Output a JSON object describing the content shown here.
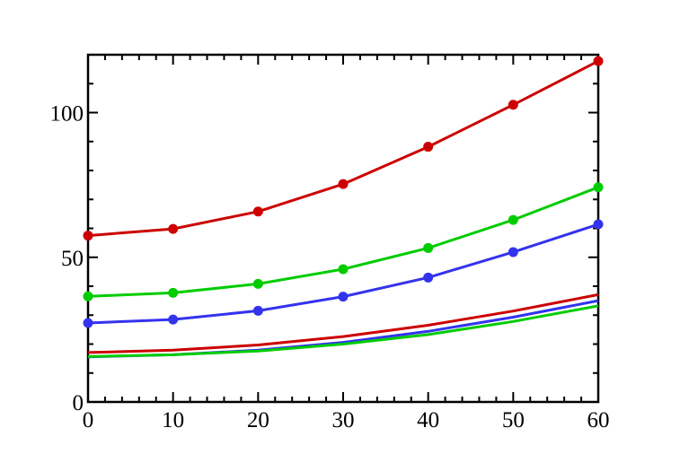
{
  "chart_data": {
    "type": "line",
    "title": "",
    "xlabel": "",
    "ylabel": "",
    "xlim": [
      0,
      60
    ],
    "ylim": [
      0,
      120
    ],
    "x_ticks": [
      0,
      10,
      20,
      30,
      40,
      50,
      60
    ],
    "y_ticks": [
      0,
      50,
      100
    ],
    "x": [
      0,
      10,
      20,
      30,
      40,
      50,
      60
    ],
    "grid": false,
    "legend": "none",
    "series": [
      {
        "color": "#cc0000",
        "markers": true,
        "values": [
          57.5,
          59.8,
          65.8,
          75.3,
          88.2,
          102.7,
          117.8
        ]
      },
      {
        "color": "#00cc00",
        "markers": true,
        "values": [
          36.5,
          37.7,
          40.8,
          45.9,
          53.2,
          62.9,
          74.2
        ]
      },
      {
        "color": "#3333ee",
        "markers": true,
        "values": [
          27.3,
          28.5,
          31.5,
          36.4,
          43.0,
          51.8,
          61.4
        ]
      },
      {
        "color": "#cc0000",
        "markers": false,
        "values": [
          17.1,
          17.9,
          19.7,
          22.6,
          26.5,
          31.4,
          37.1
        ]
      },
      {
        "color": "#3333ee",
        "markers": false,
        "values": [
          15.6,
          16.3,
          17.9,
          20.6,
          24.4,
          29.3,
          35.0
        ]
      },
      {
        "color": "#00cc00",
        "markers": false,
        "values": [
          15.7,
          16.3,
          17.6,
          20.0,
          23.3,
          27.8,
          33.2
        ]
      }
    ]
  }
}
